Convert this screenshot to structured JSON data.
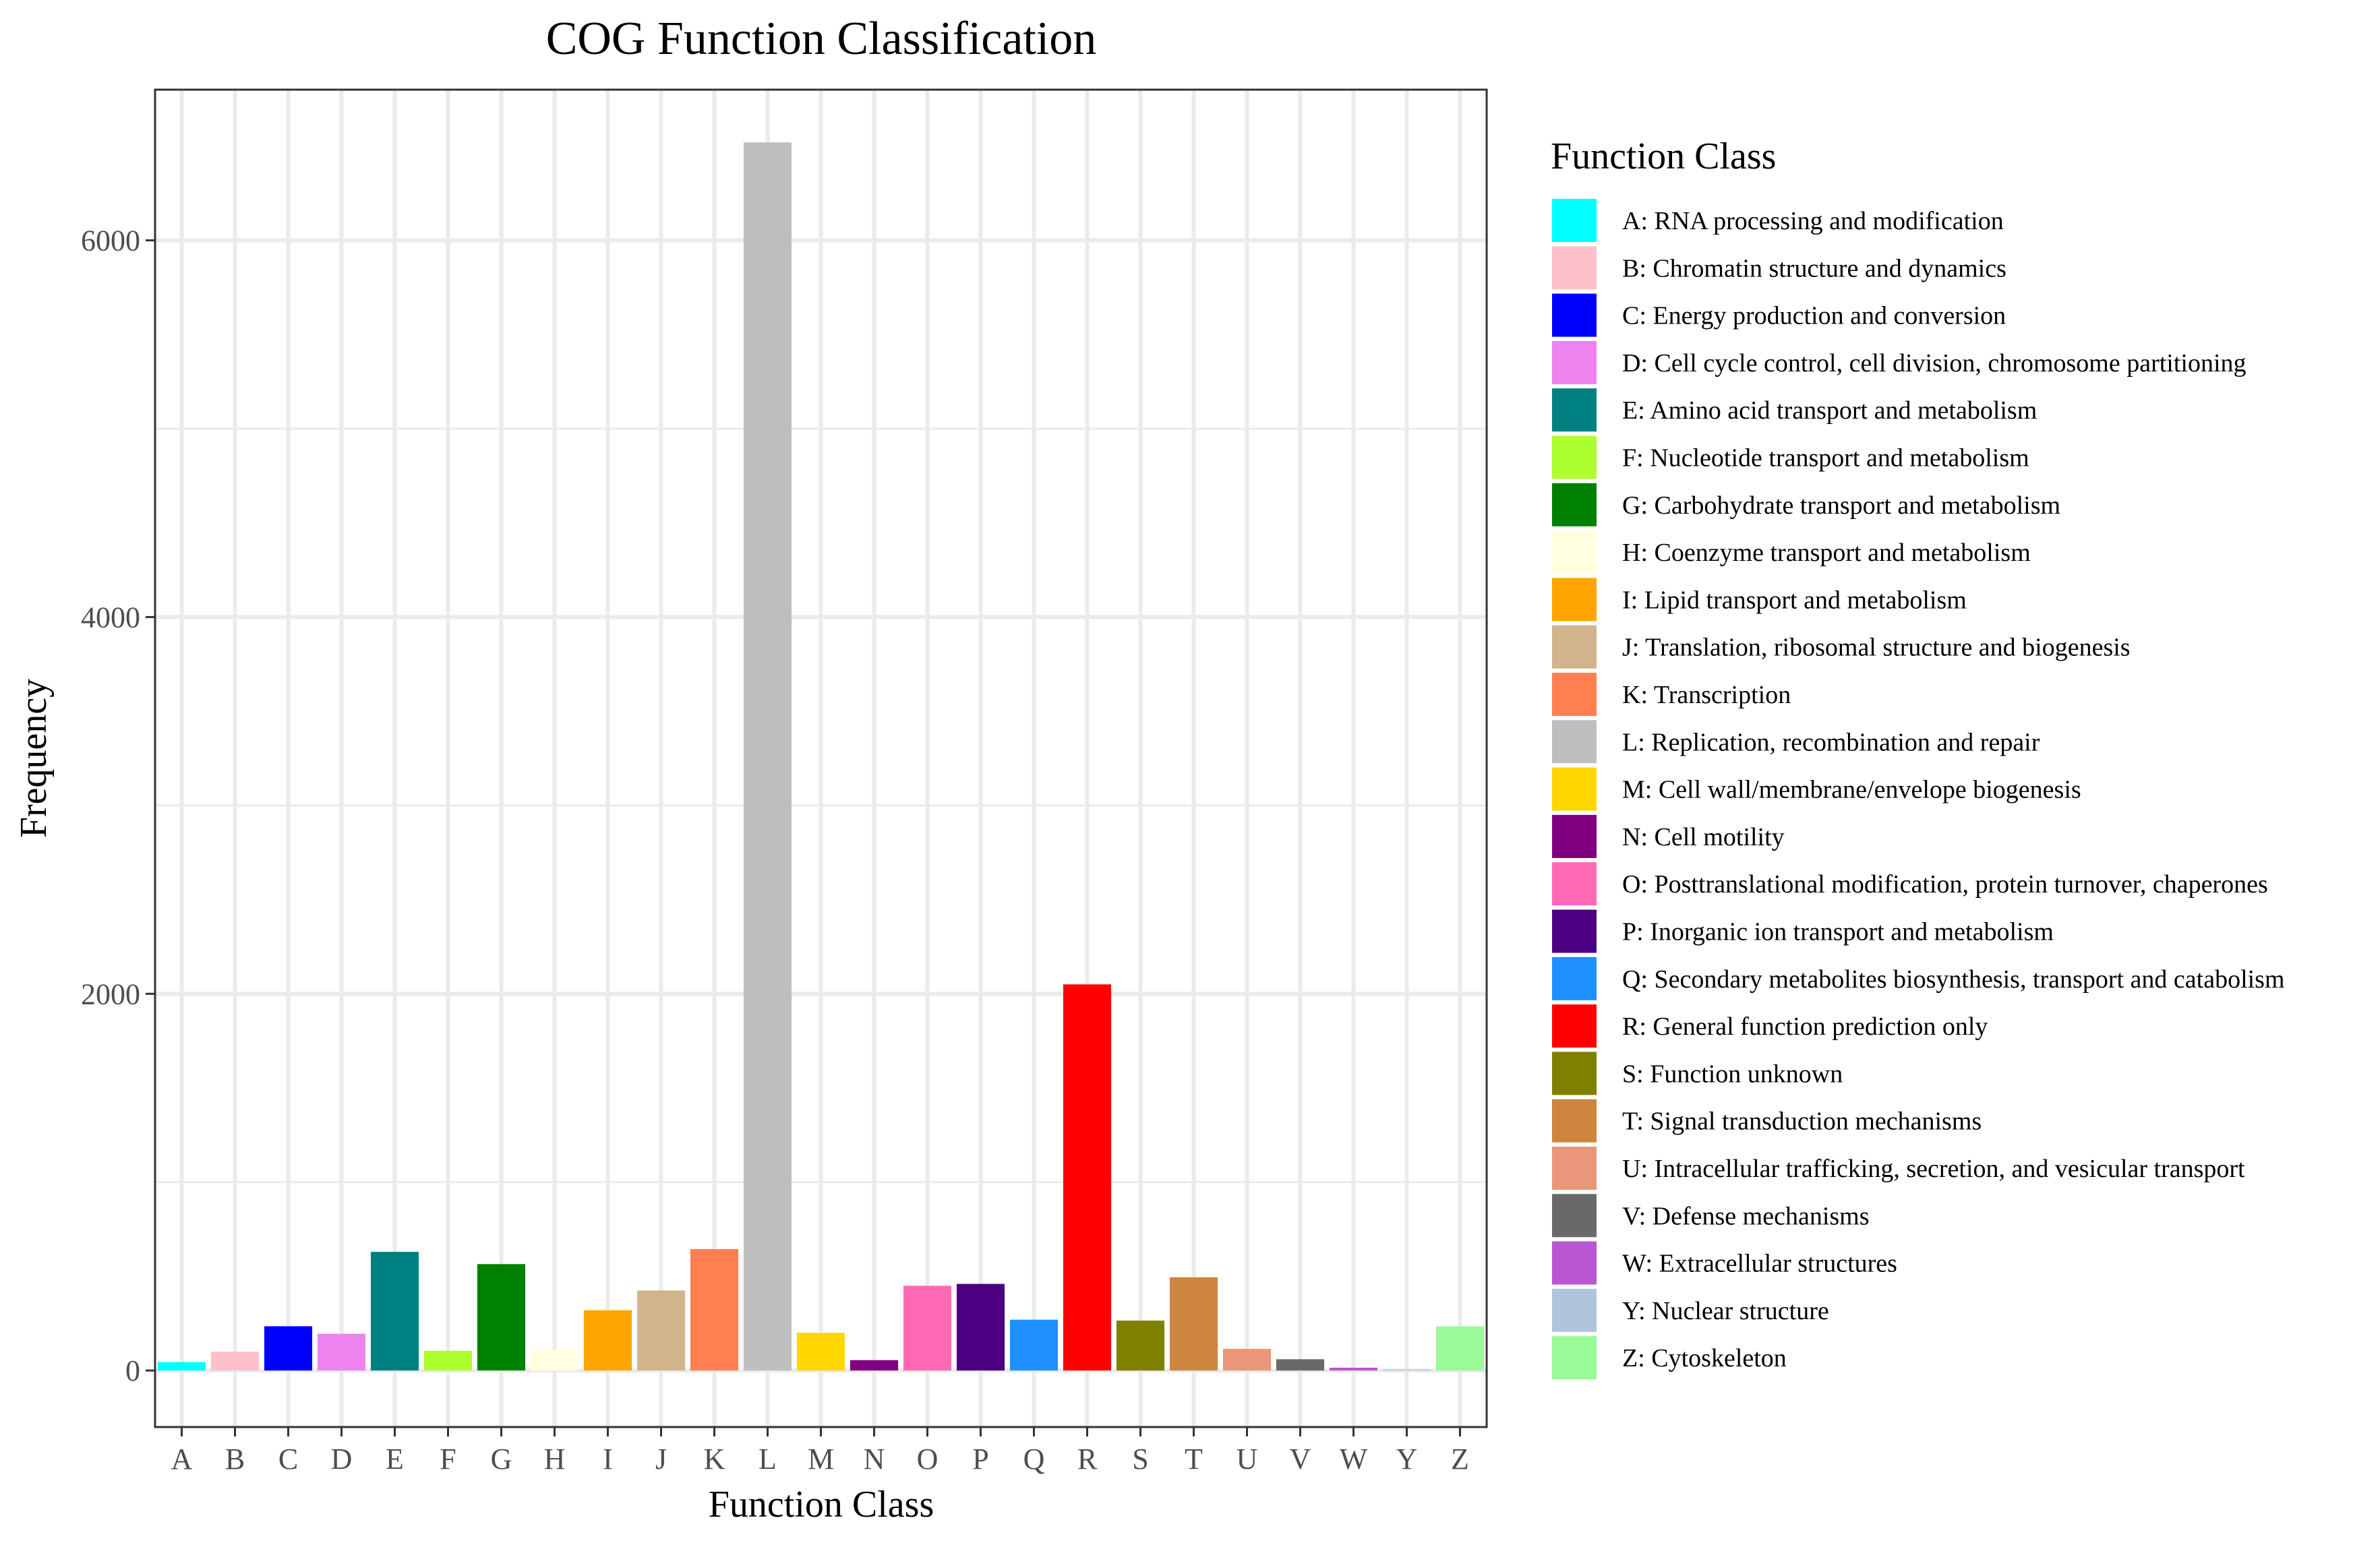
{
  "chart_data": {
    "type": "bar",
    "title": "COG Function Classification",
    "xlabel": "Function Class",
    "ylabel": "Frequency",
    "ylim": [
      -300,
      6800
    ],
    "yticks": [
      0,
      2000,
      4000,
      6000
    ],
    "grid": true,
    "legend_title": "Function Class",
    "legend_position": "right",
    "categories": [
      "A",
      "B",
      "C",
      "D",
      "E",
      "F",
      "G",
      "H",
      "I",
      "J",
      "K",
      "L",
      "M",
      "N",
      "O",
      "P",
      "Q",
      "R",
      "S",
      "T",
      "U",
      "V",
      "W",
      "Y",
      "Z"
    ],
    "values": [
      45,
      100,
      235,
      195,
      630,
      105,
      565,
      110,
      320,
      425,
      645,
      6520,
      200,
      55,
      450,
      460,
      270,
      2050,
      265,
      495,
      115,
      60,
      15,
      5,
      235
    ],
    "colors": [
      "#00FFFF",
      "#FFC0CB",
      "#0000FF",
      "#EE82EE",
      "#008080",
      "#ADFF2F",
      "#008000",
      "#FFFFE0",
      "#FFA500",
      "#D2B48C",
      "#FF7F50",
      "#BEBEBE",
      "#FFD700",
      "#800080",
      "#FF69B4",
      "#4B0082",
      "#1E90FF",
      "#FF0000",
      "#808000",
      "#CD853F",
      "#E9967A",
      "#696969",
      "#BA55D3",
      "#B0C4DE",
      "#98FB98"
    ],
    "legend": [
      "A: RNA processing and modification",
      "B: Chromatin structure and dynamics",
      "C: Energy production and conversion",
      "D: Cell cycle control, cell division, chromosome partitioning",
      "E: Amino acid transport and metabolism",
      "F: Nucleotide transport and metabolism",
      "G: Carbohydrate transport and metabolism",
      "H: Coenzyme transport and metabolism",
      "I: Lipid transport and metabolism",
      "J: Translation, ribosomal structure and biogenesis",
      "K: Transcription",
      "L: Replication, recombination and repair",
      "M: Cell wall/membrane/envelope biogenesis",
      "N: Cell motility",
      "O: Posttranslational modification, protein turnover, chaperones",
      "P: Inorganic ion transport and metabolism",
      "Q: Secondary metabolites biosynthesis, transport and catabolism",
      "R: General function prediction only",
      "S: Function unknown",
      "T: Signal transduction mechanisms",
      "U: Intracellular trafficking, secretion, and vesicular transport",
      "V: Defense mechanisms",
      "W: Extracellular structures",
      "Y: Nuclear structure",
      "Z: Cytoskeleton"
    ]
  }
}
